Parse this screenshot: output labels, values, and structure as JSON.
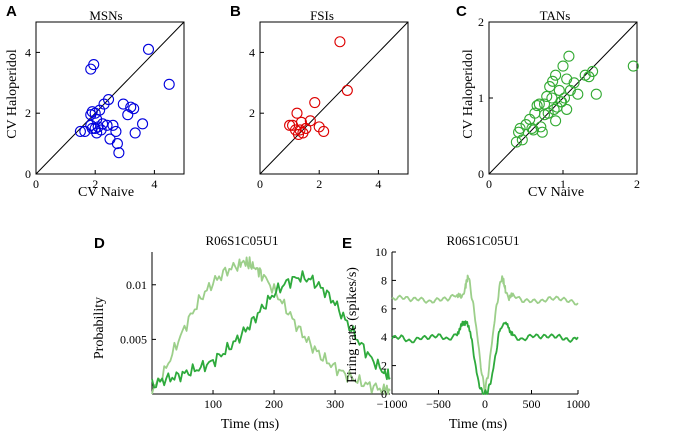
{
  "figure": {
    "panel_letters": [
      "A",
      "B",
      "C",
      "D",
      "E"
    ]
  },
  "chart_data": [
    {
      "id": "A",
      "type": "scatter",
      "title": "MSNs",
      "xlabel": "CV Naive",
      "ylabel": "CV Haloperidol",
      "xlim": [
        0,
        5
      ],
      "ylim": [
        0,
        5
      ],
      "xticks": [
        0,
        2,
        4
      ],
      "yticks": [
        0,
        2,
        4
      ],
      "xticklabels": [
        "0",
        "2",
        "4"
      ],
      "yticklabels": [
        "0",
        "2",
        "4"
      ],
      "identity_line": true,
      "color": "#0000dd",
      "points": [
        [
          1.85,
          3.45
        ],
        [
          1.95,
          3.6
        ],
        [
          3.8,
          4.1
        ],
        [
          4.5,
          2.95
        ],
        [
          1.5,
          1.4
        ],
        [
          1.65,
          1.4
        ],
        [
          1.85,
          1.6
        ],
        [
          1.85,
          1.95
        ],
        [
          1.9,
          1.5
        ],
        [
          2.0,
          1.5
        ],
        [
          1.9,
          2.05
        ],
        [
          2.05,
          1.8
        ],
        [
          2.1,
          1.55
        ],
        [
          2.15,
          2.1
        ],
        [
          2.2,
          1.45
        ],
        [
          2.25,
          1.65
        ],
        [
          2.3,
          2.3
        ],
        [
          2.4,
          1.6
        ],
        [
          2.45,
          2.45
        ],
        [
          2.5,
          1.15
        ],
        [
          2.6,
          1.6
        ],
        [
          2.7,
          1.4
        ],
        [
          2.75,
          1.0
        ],
        [
          2.8,
          0.7
        ],
        [
          2.95,
          2.3
        ],
        [
          3.1,
          1.95
        ],
        [
          3.2,
          2.2
        ],
        [
          3.3,
          2.15
        ],
        [
          3.35,
          1.35
        ],
        [
          3.6,
          1.65
        ],
        [
          2.05,
          1.35
        ],
        [
          2.0,
          2.0
        ]
      ]
    },
    {
      "id": "B",
      "type": "scatter",
      "title": "FSIs",
      "xlabel": "",
      "ylabel": "",
      "xlim": [
        0,
        5
      ],
      "ylim": [
        0,
        5
      ],
      "xticks": [
        0,
        2,
        4
      ],
      "yticks": [
        0,
        2,
        4
      ],
      "xticklabels": [
        "0",
        "2",
        "4"
      ],
      "yticklabels": [
        "",
        "2",
        "4"
      ],
      "identity_line": true,
      "color": "#dd0000",
      "points": [
        [
          1.1,
          1.6
        ],
        [
          1.2,
          1.45
        ],
        [
          1.25,
          2.0
        ],
        [
          1.3,
          1.3
        ],
        [
          1.35,
          1.45
        ],
        [
          1.4,
          1.7
        ],
        [
          1.45,
          1.35
        ],
        [
          1.55,
          1.5
        ],
        [
          1.7,
          1.75
        ],
        [
          1.85,
          2.35
        ],
        [
          2.0,
          1.55
        ],
        [
          2.15,
          1.4
        ],
        [
          2.7,
          4.35
        ],
        [
          2.95,
          2.75
        ],
        [
          1.0,
          1.6
        ]
      ]
    },
    {
      "id": "C",
      "type": "scatter",
      "title": "TANs",
      "xlabel": "CV Naive",
      "ylabel": "CV Haloperidol",
      "xlim": [
        0,
        2
      ],
      "ylim": [
        0,
        2
      ],
      "xticks": [
        0,
        1,
        2
      ],
      "yticks": [
        0,
        1,
        2
      ],
      "xticklabels": [
        "0",
        "1",
        "2"
      ],
      "yticklabels": [
        "0",
        "1",
        "2"
      ],
      "identity_line": true,
      "color": "#33aa33",
      "points": [
        [
          0.37,
          0.42
        ],
        [
          0.4,
          0.55
        ],
        [
          0.42,
          0.6
        ],
        [
          0.45,
          0.45
        ],
        [
          0.5,
          0.65
        ],
        [
          0.55,
          0.72
        ],
        [
          0.58,
          0.6
        ],
        [
          0.62,
          0.8
        ],
        [
          0.65,
          0.9
        ],
        [
          0.68,
          0.92
        ],
        [
          0.7,
          0.62
        ],
        [
          0.72,
          0.55
        ],
        [
          0.75,
          0.78
        ],
        [
          0.78,
          1.02
        ],
        [
          0.8,
          0.8
        ],
        [
          0.82,
          1.15
        ],
        [
          0.85,
          1.0
        ],
        [
          0.86,
          1.22
        ],
        [
          0.88,
          0.85
        ],
        [
          0.9,
          1.3
        ],
        [
          0.92,
          0.88
        ],
        [
          0.95,
          1.1
        ],
        [
          0.97,
          0.95
        ],
        [
          0.98,
          0.95
        ],
        [
          1.0,
          1.42
        ],
        [
          1.02,
          1.0
        ],
        [
          1.05,
          1.25
        ],
        [
          1.05,
          0.85
        ],
        [
          1.08,
          1.55
        ],
        [
          1.1,
          1.1
        ],
        [
          1.15,
          1.2
        ],
        [
          1.2,
          1.05
        ],
        [
          1.3,
          1.3
        ],
        [
          1.35,
          1.28
        ],
        [
          1.4,
          1.35
        ],
        [
          1.45,
          1.05
        ],
        [
          1.95,
          1.42
        ],
        [
          0.6,
          0.58
        ],
        [
          0.75,
          0.92
        ],
        [
          0.9,
          0.7
        ]
      ]
    },
    {
      "id": "D",
      "type": "line",
      "title": "R06S1C05U1",
      "xlabel": "Time (ms)",
      "ylabel": "Probability",
      "xlim": [
        0,
        390
      ],
      "ylim": [
        0,
        0.013
      ],
      "xticks": [
        100,
        200,
        300
      ],
      "yticks": [
        0.005,
        0.01
      ],
      "xticklabels": [
        "100",
        "200",
        "300"
      ],
      "yticklabels": [
        "0.005",
        "0.01"
      ],
      "series": [
        {
          "name": "light",
          "color": "#9ccf8a",
          "x": [
            0,
            20,
            40,
            60,
            80,
            100,
            120,
            140,
            150,
            160,
            170,
            180,
            200,
            220,
            240,
            260,
            280,
            300,
            320,
            340,
            360,
            380,
            390
          ],
          "y": [
            0.0003,
            0.002,
            0.0045,
            0.0068,
            0.0088,
            0.0102,
            0.0112,
            0.0118,
            0.0121,
            0.0119,
            0.0115,
            0.011,
            0.0095,
            0.0078,
            0.006,
            0.0045,
            0.0033,
            0.0024,
            0.0017,
            0.0011,
            0.0007,
            0.0004,
            0.0003
          ]
        },
        {
          "name": "dark",
          "color": "#2eaa3c",
          "x": [
            0,
            20,
            40,
            60,
            80,
            100,
            120,
            140,
            160,
            180,
            200,
            220,
            240,
            260,
            280,
            300,
            320,
            340,
            360,
            380,
            390
          ],
          "y": [
            0.0008,
            0.0013,
            0.0016,
            0.002,
            0.0024,
            0.003,
            0.0039,
            0.005,
            0.0063,
            0.0078,
            0.0092,
            0.0102,
            0.0107,
            0.0105,
            0.0096,
            0.0083,
            0.0065,
            0.0047,
            0.0032,
            0.002,
            0.0015
          ]
        }
      ]
    },
    {
      "id": "E",
      "type": "line",
      "title": "R06S1C05U1",
      "xlabel": "Time (ms)",
      "ylabel": "Firing rate (spikes/s)",
      "xlim": [
        -1000,
        1000
      ],
      "ylim": [
        0,
        10
      ],
      "xticks": [
        -1000,
        -500,
        0,
        500,
        1000
      ],
      "yticks": [
        0,
        2,
        4,
        6,
        8,
        10
      ],
      "xticklabels": [
        "−1000",
        "−500",
        "0",
        "500",
        "1000"
      ],
      "yticklabels": [
        "0",
        "2",
        "4",
        "6",
        "8",
        "10"
      ],
      "series": [
        {
          "name": "light",
          "color": "#9ccf8a",
          "x": [
            -1000,
            -900,
            -800,
            -700,
            -600,
            -500,
            -400,
            -300,
            -250,
            -220,
            -200,
            -180,
            -150,
            -120,
            -90,
            -60,
            -30,
            0,
            30,
            60,
            90,
            120,
            150,
            180,
            200,
            220,
            250,
            300,
            400,
            500,
            600,
            700,
            800,
            900,
            1000
          ],
          "y": [
            6.6,
            6.7,
            6.6,
            6.8,
            6.6,
            6.7,
            6.6,
            6.9,
            6.8,
            7.3,
            7.9,
            8.3,
            7.2,
            6.0,
            4.5,
            2.8,
            1.2,
            0.3,
            1.2,
            2.8,
            4.5,
            6.0,
            7.2,
            8.3,
            7.9,
            7.3,
            6.8,
            6.9,
            6.6,
            6.7,
            6.6,
            6.7,
            6.6,
            6.5,
            6.4
          ]
        },
        {
          "name": "dark",
          "color": "#2eaa3c",
          "x": [
            -1000,
            -900,
            -800,
            -700,
            -600,
            -500,
            -400,
            -300,
            -250,
            -200,
            -150,
            -120,
            -90,
            -60,
            -30,
            0,
            30,
            60,
            90,
            120,
            150,
            200,
            250,
            300,
            400,
            500,
            600,
            700,
            800,
            900,
            1000
          ],
          "y": [
            3.9,
            4.1,
            3.8,
            4.0,
            3.9,
            4.0,
            3.8,
            4.3,
            4.8,
            5.2,
            4.0,
            2.8,
            1.5,
            0.6,
            0.1,
            0.0,
            0.2,
            0.8,
            1.8,
            3.0,
            4.2,
            5.1,
            4.7,
            4.2,
            3.9,
            4.1,
            3.9,
            4.0,
            4.1,
            3.9,
            4.0
          ]
        }
      ]
    }
  ]
}
